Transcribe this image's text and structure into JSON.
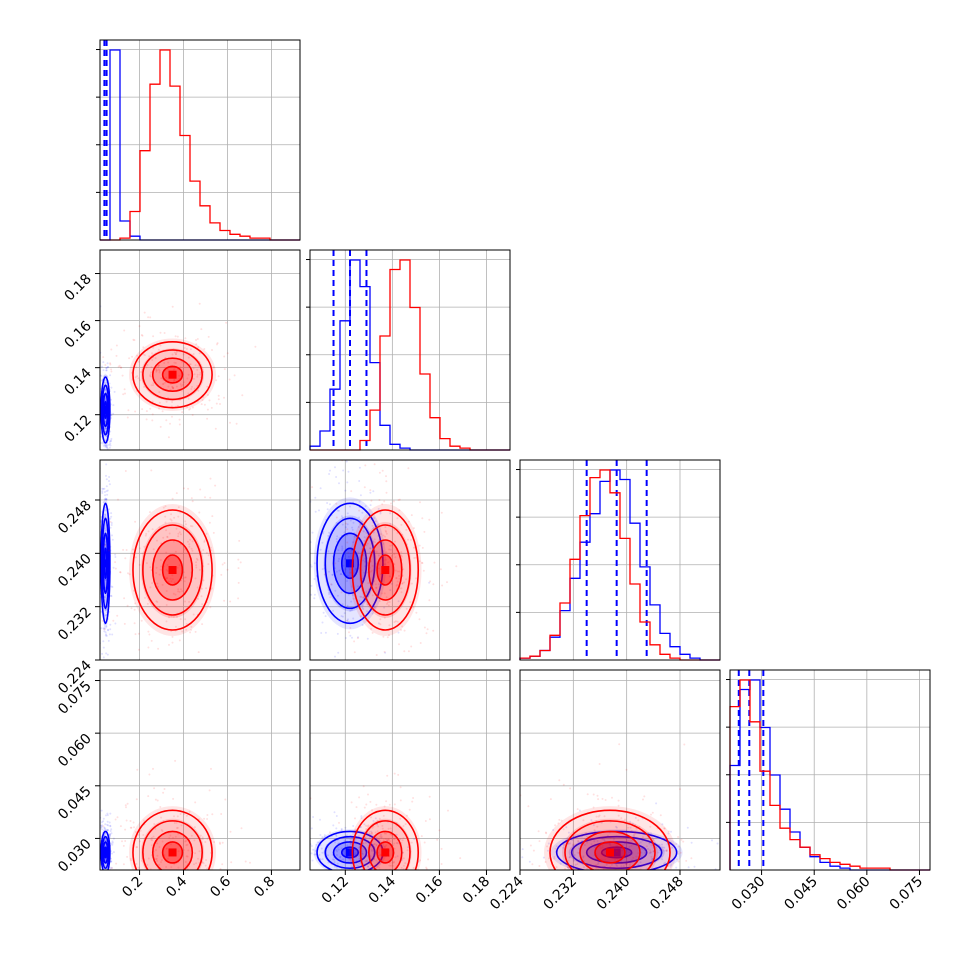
{
  "chart_data": {
    "type": "corner",
    "parameters": [
      {
        "id": "p1",
        "xlim": [
          0.02,
          0.93
        ],
        "ticks": [
          0.2,
          0.4,
          0.6,
          0.8
        ],
        "tick_labels": [
          "0.2",
          "0.4",
          "0.6",
          "0.8"
        ]
      },
      {
        "id": "p2",
        "xlim": [
          0.105,
          0.19
        ],
        "ticks": [
          0.12,
          0.14,
          0.16,
          0.18
        ],
        "tick_labels": [
          "0.12",
          "0.14",
          "0.16",
          "0.18"
        ]
      },
      {
        "id": "p3",
        "xlim": [
          0.224,
          0.254
        ],
        "ticks": [
          0.224,
          0.232,
          0.24,
          0.248
        ],
        "tick_labels": [
          "0.224",
          "0.232",
          "0.240",
          "0.248"
        ]
      },
      {
        "id": "p4",
        "xlim": [
          0.021,
          0.078
        ],
        "ticks": [
          0.03,
          0.045,
          0.06,
          0.075
        ],
        "tick_labels": [
          "0.030",
          "0.045",
          "0.060",
          "0.075"
        ]
      }
    ],
    "series": [
      {
        "color": "#0000ff",
        "means": [
          0.045,
          0.122,
          0.2385,
          0.026
        ],
        "sds": [
          0.01,
          0.007,
          0.0045,
          0.003
        ],
        "quantile_lines": [
          [
            0.04,
            0.05
          ],
          [
            0.115,
            0.122,
            0.129
          ],
          [
            0.234,
            0.2385,
            0.243
          ],
          [
            0.0235,
            0.0265,
            0.0305
          ]
        ],
        "hist": [
          [
            0.0,
            1.0,
            0.1,
            0.02,
            0,
            0,
            0,
            0,
            0,
            0,
            0,
            0,
            0,
            0,
            0,
            0,
            0,
            0,
            0,
            0
          ],
          [
            0.02,
            0.1,
            0.32,
            0.68,
            1.0,
            0.86,
            0.46,
            0.13,
            0.03,
            0.01,
            0,
            0,
            0,
            0,
            0,
            0,
            0,
            0,
            0,
            0
          ],
          [
            0.01,
            0.02,
            0.05,
            0.12,
            0.26,
            0.43,
            0.62,
            0.77,
            0.94,
            1.0,
            0.95,
            0.72,
            0.49,
            0.29,
            0.14,
            0.07,
            0.03,
            0.01,
            0,
            0
          ],
          [
            0.55,
            0.95,
            1.0,
            0.75,
            0.5,
            0.32,
            0.2,
            0.12,
            0.07,
            0.04,
            0.02,
            0.01,
            0,
            0,
            0,
            0,
            0,
            0,
            0,
            0
          ]
        ]
      },
      {
        "color": "#ff0000",
        "means": [
          0.35,
          0.137,
          0.2375,
          0.026
        ],
        "sds": [
          0.09,
          0.007,
          0.0045,
          0.006
        ],
        "quantile_lines": [],
        "hist": [
          [
            0,
            0,
            0.01,
            0.15,
            0.47,
            0.82,
            1.0,
            0.81,
            0.55,
            0.31,
            0.18,
            0.09,
            0.05,
            0.03,
            0.02,
            0.01,
            0.01,
            0,
            0,
            0
          ],
          [
            0,
            0,
            0,
            0,
            0,
            0.05,
            0.21,
            0.6,
            0.95,
            1.0,
            0.75,
            0.4,
            0.17,
            0.06,
            0.02,
            0.01,
            0,
            0,
            0,
            0
          ],
          [
            0.01,
            0.02,
            0.05,
            0.13,
            0.3,
            0.53,
            0.76,
            0.96,
            1.0,
            0.88,
            0.64,
            0.4,
            0.2,
            0.08,
            0.03,
            0.01,
            0,
            0,
            0,
            0
          ],
          [
            0.86,
            1.0,
            0.78,
            0.52,
            0.34,
            0.22,
            0.16,
            0.12,
            0.08,
            0.06,
            0.04,
            0.03,
            0.02,
            0.01,
            0.01,
            0.01,
            0,
            0,
            0,
            0
          ]
        ]
      }
    ],
    "grid": true,
    "tick_rotation_degrees": 45
  }
}
